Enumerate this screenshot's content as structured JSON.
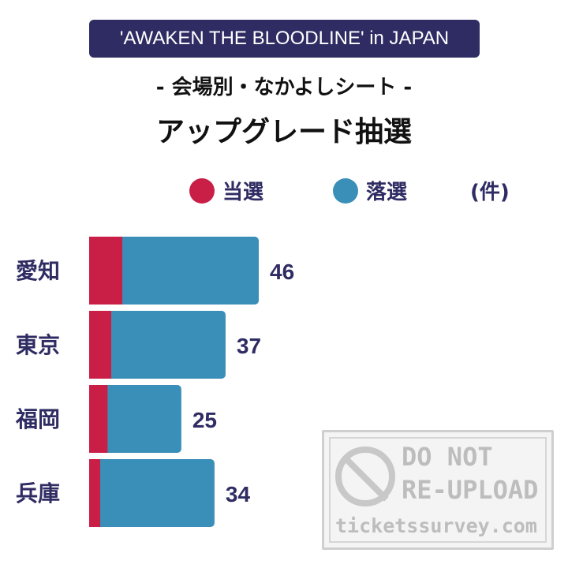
{
  "header": {
    "badge": "'AWAKEN THE BLOODLINE' in JAPAN",
    "subtitle": "- 会場別・なかよしシート -",
    "title": "アップグレード抽選"
  },
  "legend": {
    "won_label": "当選",
    "lost_label": "落選",
    "unit": "(件)"
  },
  "colors": {
    "won": "#c91f47",
    "lost": "#3a8fb8",
    "text": "#2f2c63"
  },
  "chart_data": {
    "type": "bar",
    "orientation": "horizontal",
    "stacked": true,
    "categories": [
      "愛知",
      "東京",
      "福岡",
      "兵庫"
    ],
    "series": [
      {
        "name": "当選",
        "values": [
          9,
          6,
          5,
          3
        ]
      },
      {
        "name": "落選",
        "values": [
          37,
          31,
          20,
          31
        ]
      }
    ],
    "totals": [
      46,
      37,
      25,
      34
    ],
    "xlim": [
      0,
      46
    ],
    "grid": false,
    "legend_position": "top-right"
  },
  "watermark": {
    "line1": "DO NOT",
    "line2": "RE-UPLOAD",
    "line3": "ticketssurvey.com"
  }
}
